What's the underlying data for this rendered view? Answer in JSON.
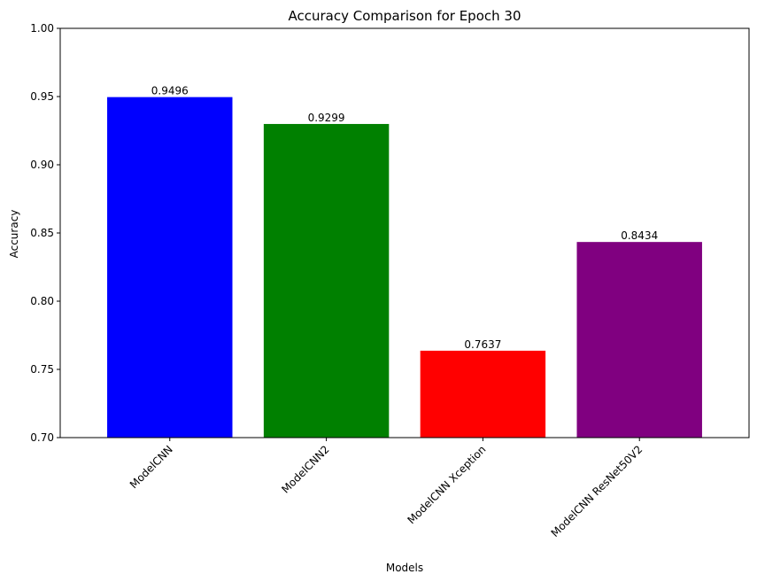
{
  "chart_data": {
    "type": "bar",
    "title": "Accuracy Comparison for Epoch 30",
    "xlabel": "Models",
    "ylabel": "Accuracy",
    "categories": [
      "ModelCNN",
      "ModelCNN2",
      "ModelCNN Xception",
      "ModelCNN ResNet50V2"
    ],
    "values": [
      0.9496,
      0.9299,
      0.7637,
      0.8434
    ],
    "value_labels": [
      "0.9496",
      "0.9299",
      "0.7637",
      "0.8434"
    ],
    "colors": [
      "#0000ff",
      "#008000",
      "#ff0000",
      "#800080"
    ],
    "ylim": [
      0.7,
      1.0
    ],
    "yticks": [
      0.7,
      0.75,
      0.8,
      0.85,
      0.9,
      0.95,
      1.0
    ],
    "ytick_labels": [
      "0.70",
      "0.75",
      "0.80",
      "0.85",
      "0.90",
      "0.95",
      "1.00"
    ],
    "x_tick_rotation": "45 degrees",
    "grid": false,
    "legend": "none"
  }
}
